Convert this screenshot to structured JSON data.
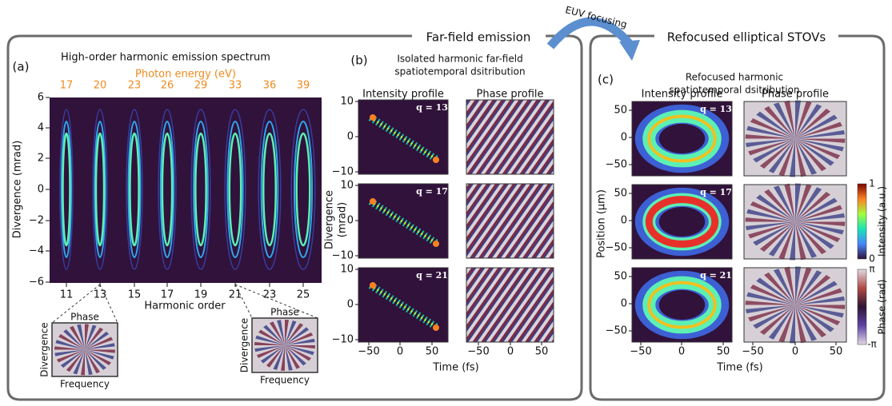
{
  "sections": {
    "far_field": "Far-field emission",
    "refocused": "Refocused elliptical STOVs",
    "arrow": "EUV focusing"
  },
  "panel_a": {
    "label": "(a)",
    "title": "High-order harmonic emission spectrum",
    "top_axis_label": "Photon energy (eV)",
    "top_ticks": [
      "17",
      "20",
      "23",
      "26",
      "29",
      "33",
      "36",
      "39"
    ],
    "y_label": "Divergence (mrad)",
    "y_ticks": [
      "6",
      "4",
      "2",
      "0",
      "−2",
      "−4",
      "−6"
    ],
    "x_label": "Harmonic order",
    "x_ticks": [
      "11",
      "13",
      "15",
      "17",
      "19",
      "21",
      "23",
      "25"
    ],
    "insets": [
      {
        "title": "Phase",
        "y_label": "Divergence",
        "x_label": "Frequency"
      },
      {
        "title": "Phase",
        "y_label": "Divergence",
        "x_label": "Frequency"
      }
    ]
  },
  "panel_b": {
    "label": "(b)",
    "title": [
      "Isolated harmonic far-field",
      "spatiotemporal dsitribution"
    ],
    "col_titles": [
      "Intensity profile",
      "Phase profile"
    ],
    "rows": [
      "q = 13",
      "q = 17",
      "q = 21"
    ],
    "y_label": [
      "Divergence",
      "(mrad)"
    ],
    "y_ticks": [
      "10",
      "0",
      "−10"
    ],
    "x_ticks": [
      "−50",
      "0",
      "50"
    ],
    "x_label": "Time (fs)"
  },
  "panel_c": {
    "label": "(c)",
    "title": [
      "Refocused harmonic",
      "spatiotemporal dsitribution"
    ],
    "col_titles": [
      "Intensity profile",
      "Phase profile"
    ],
    "rows": [
      "q = 13",
      "q = 17",
      "q = 21"
    ],
    "y_label": "Position (μm)",
    "y_ticks": [
      "50",
      "0",
      "−50"
    ],
    "x_ticks": [
      "−50",
      "0",
      "50"
    ],
    "x_label": "Time (fs)",
    "colorbars": [
      {
        "max": "1",
        "min": "0",
        "label": "Intensity (a.u.)"
      },
      {
        "max": "π",
        "min": "-π",
        "label": "Phase (rad)"
      }
    ]
  }
}
